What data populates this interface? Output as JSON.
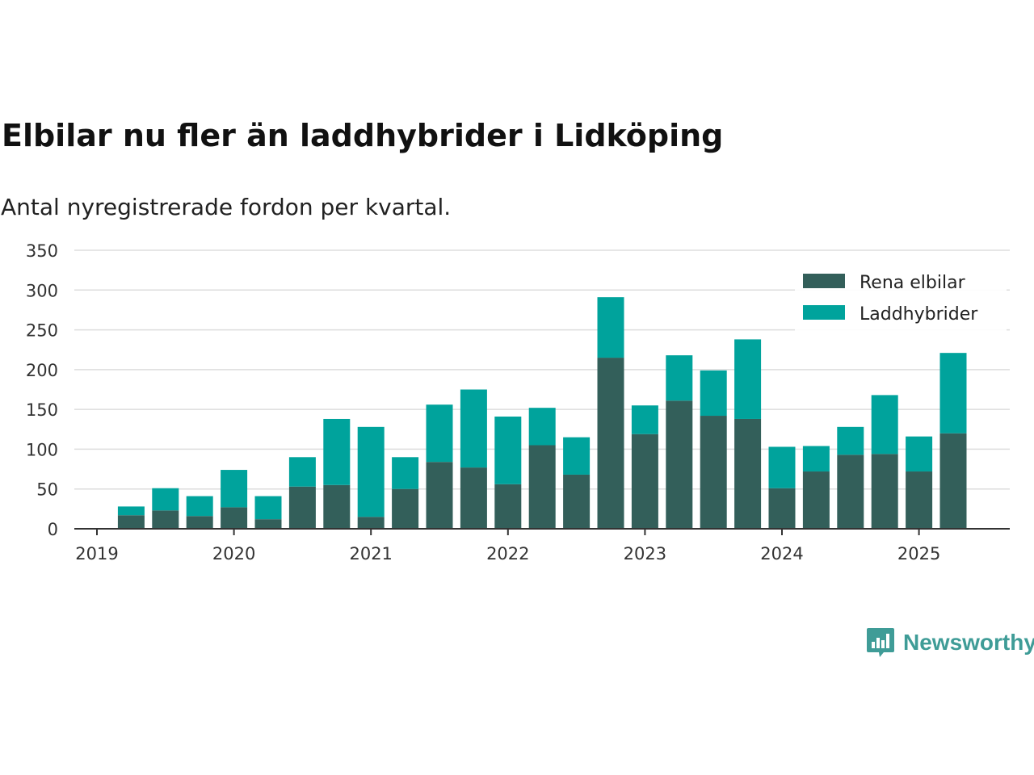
{
  "chart_data": {
    "type": "bar",
    "stacked": true,
    "title": "Elbilar nu fler än laddhybrider i Lidköping",
    "subtitle": "Antal nyregistrerade fordon per kvartal.",
    "ylim": [
      0,
      350
    ],
    "y_ticks": [
      "0",
      "50",
      "100",
      "150",
      "200",
      "250",
      "300",
      "350"
    ],
    "x_ticks": [
      "2019",
      "2020",
      "2021",
      "2022",
      "2023",
      "2024",
      "2025"
    ],
    "grid": true,
    "legend_position": "top-right",
    "categories": [
      "2019 Q2",
      "2019 Q3",
      "2019 Q4",
      "2020 Q1",
      "2020 Q2",
      "2020 Q3",
      "2020 Q4",
      "2021 Q1",
      "2021 Q2",
      "2021 Q3",
      "2021 Q4",
      "2022 Q1",
      "2022 Q2",
      "2022 Q3",
      "2022 Q4",
      "2023 Q1",
      "2023 Q2",
      "2023 Q3",
      "2023 Q4",
      "2024 Q1",
      "2024 Q2",
      "2024 Q3",
      "2024 Q4",
      "2025 Q1",
      "2025 Q2"
    ],
    "series": [
      {
        "name": "Rena elbilar",
        "color": "#335f5a",
        "values": [
          17,
          23,
          16,
          27,
          12,
          53,
          55,
          15,
          50,
          84,
          77,
          56,
          105,
          68,
          215,
          119,
          161,
          142,
          138,
          51,
          72,
          93,
          94,
          72,
          120
        ]
      },
      {
        "name": "Laddhybrider",
        "color": "#00a39c",
        "values": [
          11,
          28,
          25,
          47,
          29,
          37,
          83,
          113,
          40,
          72,
          98,
          85,
          47,
          47,
          76,
          36,
          57,
          57,
          100,
          52,
          32,
          35,
          74,
          44,
          101
        ]
      }
    ]
  },
  "brand": {
    "name": "Newsworthy",
    "color": "#3f9c97"
  }
}
